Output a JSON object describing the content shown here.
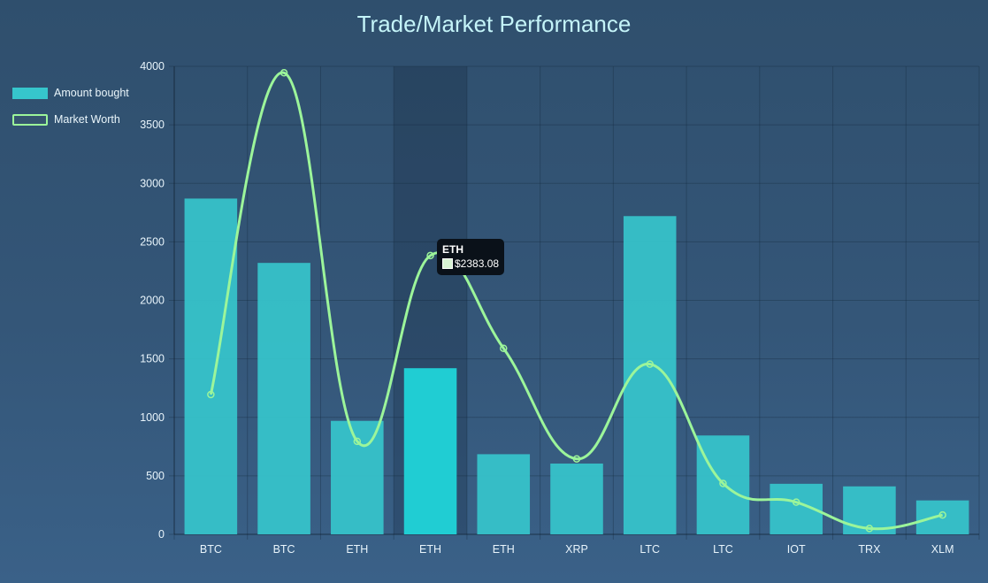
{
  "chart_data": {
    "type": "bar",
    "title": "Trade/Market Performance",
    "categories": [
      "BTC",
      "BTC",
      "ETH",
      "ETH",
      "ETH",
      "XRP",
      "LTC",
      "LTC",
      "IOT",
      "TRX",
      "XLM"
    ],
    "series": [
      {
        "name": "Amount bought",
        "type": "bar",
        "color": "#36c6cc",
        "values": [
          2870,
          2320,
          970,
          1420,
          685,
          605,
          2720,
          845,
          432,
          410,
          290
        ]
      },
      {
        "name": "Market Worth",
        "type": "line",
        "color": "#9cf59a",
        "values": [
          1195,
          3945,
          795,
          2383.08,
          1590,
          645,
          1455,
          435,
          275,
          50,
          165
        ]
      }
    ],
    "highlighted_category_index": 3,
    "highlight_color": "#20cdd3",
    "ylim": [
      0,
      4000
    ],
    "yticks": [
      0,
      500,
      1000,
      1500,
      2000,
      2500,
      3000,
      3500,
      4000
    ],
    "grid": true,
    "legend_position": "top-left",
    "tooltip": {
      "title": "ETH",
      "value": "$2383.08"
    }
  }
}
